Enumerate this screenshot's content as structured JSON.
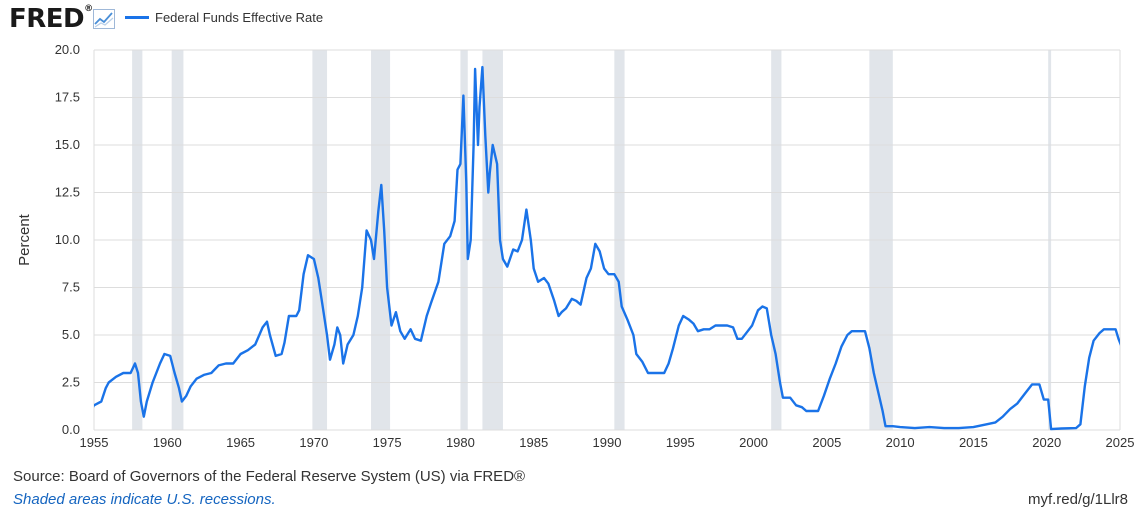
{
  "header": {
    "logo_text": "FRED",
    "logo_suffix": "®",
    "logo_icon": "line-chart-icon"
  },
  "colors": {
    "series": "#1a73e8",
    "recession": "#e1e5ea",
    "grid": "#dddddd",
    "note_link": "#1565c0"
  },
  "footer": {
    "source": "Source: Board of Governors of the Federal Reserve System (US) via FRED®",
    "shaded_note": "Shaded areas indicate U.S. recessions.",
    "short_url": "myf.red/g/1Llr8"
  },
  "chart_data": {
    "type": "line",
    "ylabel": "Percent",
    "xlim": [
      1955,
      2025
    ],
    "ylim": [
      0,
      20
    ],
    "x_ticks": [
      "1955",
      "1960",
      "1965",
      "1970",
      "1975",
      "1980",
      "1985",
      "1990",
      "1995",
      "2000",
      "2005",
      "2010",
      "2015",
      "2020",
      "2025"
    ],
    "y_ticks": [
      "0.0",
      "2.5",
      "5.0",
      "7.5",
      "10.0",
      "12.5",
      "15.0",
      "17.5",
      "20.0"
    ],
    "grid": "horizontal",
    "legend_position": "top-left",
    "recessions": [
      [
        1957.6,
        1958.3
      ],
      [
        1960.3,
        1961.1
      ],
      [
        1969.9,
        1970.9
      ],
      [
        1973.9,
        1975.2
      ],
      [
        1980.0,
        1980.5
      ],
      [
        1981.5,
        1982.9
      ],
      [
        1990.5,
        1991.2
      ],
      [
        2001.2,
        2001.9
      ],
      [
        2007.9,
        2009.5
      ],
      [
        2020.1,
        2020.3
      ]
    ],
    "series": [
      {
        "name": "Federal Funds Effective Rate",
        "points": [
          [
            1954.5,
            1.5
          ],
          [
            1954.7,
            0.9
          ],
          [
            1955.0,
            1.3
          ],
          [
            1955.5,
            1.5
          ],
          [
            1955.8,
            2.2
          ],
          [
            1956.0,
            2.5
          ],
          [
            1956.5,
            2.8
          ],
          [
            1957.0,
            3.0
          ],
          [
            1957.5,
            3.0
          ],
          [
            1957.8,
            3.5
          ],
          [
            1958.0,
            3.0
          ],
          [
            1958.2,
            1.5
          ],
          [
            1958.4,
            0.7
          ],
          [
            1958.6,
            1.5
          ],
          [
            1959.0,
            2.5
          ],
          [
            1959.5,
            3.5
          ],
          [
            1959.8,
            4.0
          ],
          [
            1960.2,
            3.9
          ],
          [
            1960.5,
            3.0
          ],
          [
            1960.8,
            2.2
          ],
          [
            1961.0,
            1.5
          ],
          [
            1961.3,
            1.8
          ],
          [
            1961.6,
            2.3
          ],
          [
            1962.0,
            2.7
          ],
          [
            1962.5,
            2.9
          ],
          [
            1963.0,
            3.0
          ],
          [
            1963.5,
            3.4
          ],
          [
            1964.0,
            3.5
          ],
          [
            1964.5,
            3.5
          ],
          [
            1965.0,
            4.0
          ],
          [
            1965.5,
            4.2
          ],
          [
            1966.0,
            4.5
          ],
          [
            1966.5,
            5.4
          ],
          [
            1966.8,
            5.7
          ],
          [
            1967.0,
            5.0
          ],
          [
            1967.4,
            3.9
          ],
          [
            1967.8,
            4.0
          ],
          [
            1968.0,
            4.6
          ],
          [
            1968.3,
            6.0
          ],
          [
            1968.8,
            6.0
          ],
          [
            1969.0,
            6.3
          ],
          [
            1969.3,
            8.2
          ],
          [
            1969.6,
            9.2
          ],
          [
            1970.0,
            9.0
          ],
          [
            1970.3,
            8.0
          ],
          [
            1970.6,
            6.5
          ],
          [
            1970.9,
            5.0
          ],
          [
            1971.1,
            3.7
          ],
          [
            1971.4,
            4.5
          ],
          [
            1971.6,
            5.4
          ],
          [
            1971.8,
            5.0
          ],
          [
            1972.0,
            3.5
          ],
          [
            1972.3,
            4.5
          ],
          [
            1972.7,
            5.0
          ],
          [
            1973.0,
            6.0
          ],
          [
            1973.3,
            7.5
          ],
          [
            1973.6,
            10.5
          ],
          [
            1973.9,
            10.0
          ],
          [
            1974.1,
            9.0
          ],
          [
            1974.4,
            11.5
          ],
          [
            1974.6,
            12.9
          ],
          [
            1974.8,
            10.5
          ],
          [
            1975.0,
            7.5
          ],
          [
            1975.3,
            5.5
          ],
          [
            1975.6,
            6.2
          ],
          [
            1975.9,
            5.2
          ],
          [
            1976.2,
            4.8
          ],
          [
            1976.6,
            5.3
          ],
          [
            1976.9,
            4.8
          ],
          [
            1977.3,
            4.7
          ],
          [
            1977.7,
            6.0
          ],
          [
            1978.0,
            6.7
          ],
          [
            1978.5,
            7.8
          ],
          [
            1978.9,
            9.8
          ],
          [
            1979.3,
            10.2
          ],
          [
            1979.6,
            11.0
          ],
          [
            1979.8,
            13.7
          ],
          [
            1980.0,
            14.0
          ],
          [
            1980.2,
            17.6
          ],
          [
            1980.4,
            13.0
          ],
          [
            1980.5,
            9.0
          ],
          [
            1980.7,
            10.0
          ],
          [
            1980.9,
            15.0
          ],
          [
            1981.0,
            19.0
          ],
          [
            1981.2,
            15.0
          ],
          [
            1981.3,
            17.0
          ],
          [
            1981.5,
            19.1
          ],
          [
            1981.7,
            15.5
          ],
          [
            1981.9,
            12.5
          ],
          [
            1982.0,
            13.5
          ],
          [
            1982.2,
            15.0
          ],
          [
            1982.5,
            14.0
          ],
          [
            1982.7,
            10.0
          ],
          [
            1982.9,
            9.0
          ],
          [
            1983.2,
            8.6
          ],
          [
            1983.6,
            9.5
          ],
          [
            1983.9,
            9.4
          ],
          [
            1984.2,
            10.0
          ],
          [
            1984.5,
            11.6
          ],
          [
            1984.8,
            10.0
          ],
          [
            1985.0,
            8.5
          ],
          [
            1985.3,
            7.8
          ],
          [
            1985.7,
            8.0
          ],
          [
            1986.0,
            7.7
          ],
          [
            1986.4,
            6.8
          ],
          [
            1986.7,
            6.0
          ],
          [
            1986.9,
            6.2
          ],
          [
            1987.2,
            6.4
          ],
          [
            1987.6,
            6.9
          ],
          [
            1987.9,
            6.8
          ],
          [
            1988.2,
            6.6
          ],
          [
            1988.6,
            8.0
          ],
          [
            1988.9,
            8.5
          ],
          [
            1989.2,
            9.8
          ],
          [
            1989.5,
            9.4
          ],
          [
            1989.8,
            8.5
          ],
          [
            1990.1,
            8.2
          ],
          [
            1990.5,
            8.2
          ],
          [
            1990.8,
            7.8
          ],
          [
            1991.0,
            6.5
          ],
          [
            1991.4,
            5.8
          ],
          [
            1991.8,
            5.0
          ],
          [
            1992.0,
            4.0
          ],
          [
            1992.4,
            3.6
          ],
          [
            1992.8,
            3.0
          ],
          [
            1993.2,
            3.0
          ],
          [
            1993.6,
            3.0
          ],
          [
            1993.9,
            3.0
          ],
          [
            1994.2,
            3.5
          ],
          [
            1994.5,
            4.3
          ],
          [
            1994.9,
            5.5
          ],
          [
            1995.2,
            6.0
          ],
          [
            1995.6,
            5.8
          ],
          [
            1995.9,
            5.6
          ],
          [
            1996.2,
            5.2
          ],
          [
            1996.6,
            5.3
          ],
          [
            1997.0,
            5.3
          ],
          [
            1997.4,
            5.5
          ],
          [
            1997.8,
            5.5
          ],
          [
            1998.2,
            5.5
          ],
          [
            1998.6,
            5.4
          ],
          [
            1998.9,
            4.8
          ],
          [
            1999.2,
            4.8
          ],
          [
            1999.6,
            5.2
          ],
          [
            1999.9,
            5.5
          ],
          [
            2000.3,
            6.3
          ],
          [
            2000.6,
            6.5
          ],
          [
            2000.9,
            6.4
          ],
          [
            2001.2,
            5.0
          ],
          [
            2001.5,
            4.0
          ],
          [
            2001.8,
            2.5
          ],
          [
            2002.0,
            1.7
          ],
          [
            2002.5,
            1.7
          ],
          [
            2002.9,
            1.3
          ],
          [
            2003.3,
            1.2
          ],
          [
            2003.6,
            1.0
          ],
          [
            2004.0,
            1.0
          ],
          [
            2004.4,
            1.0
          ],
          [
            2004.8,
            1.8
          ],
          [
            2005.2,
            2.7
          ],
          [
            2005.6,
            3.5
          ],
          [
            2006.0,
            4.4
          ],
          [
            2006.4,
            5.0
          ],
          [
            2006.7,
            5.2
          ],
          [
            2007.2,
            5.2
          ],
          [
            2007.6,
            5.2
          ],
          [
            2007.9,
            4.3
          ],
          [
            2008.2,
            3.0
          ],
          [
            2008.5,
            2.0
          ],
          [
            2008.8,
            1.0
          ],
          [
            2009.0,
            0.2
          ],
          [
            2009.5,
            0.2
          ],
          [
            2010.0,
            0.15
          ],
          [
            2011.0,
            0.1
          ],
          [
            2012.0,
            0.15
          ],
          [
            2013.0,
            0.1
          ],
          [
            2014.0,
            0.1
          ],
          [
            2015.0,
            0.15
          ],
          [
            2015.9,
            0.3
          ],
          [
            2016.5,
            0.4
          ],
          [
            2017.0,
            0.7
          ],
          [
            2017.5,
            1.1
          ],
          [
            2018.0,
            1.4
          ],
          [
            2018.5,
            1.9
          ],
          [
            2019.0,
            2.4
          ],
          [
            2019.5,
            2.4
          ],
          [
            2019.8,
            1.6
          ],
          [
            2020.1,
            1.6
          ],
          [
            2020.3,
            0.05
          ],
          [
            2021.0,
            0.08
          ],
          [
            2022.0,
            0.1
          ],
          [
            2022.3,
            0.3
          ],
          [
            2022.6,
            2.3
          ],
          [
            2022.9,
            3.8
          ],
          [
            2023.2,
            4.7
          ],
          [
            2023.6,
            5.1
          ],
          [
            2023.9,
            5.3
          ],
          [
            2024.4,
            5.3
          ],
          [
            2024.7,
            5.3
          ],
          [
            2024.9,
            4.8
          ],
          [
            2025.1,
            4.4
          ],
          [
            2025.6,
            4.4
          ]
        ]
      }
    ]
  }
}
